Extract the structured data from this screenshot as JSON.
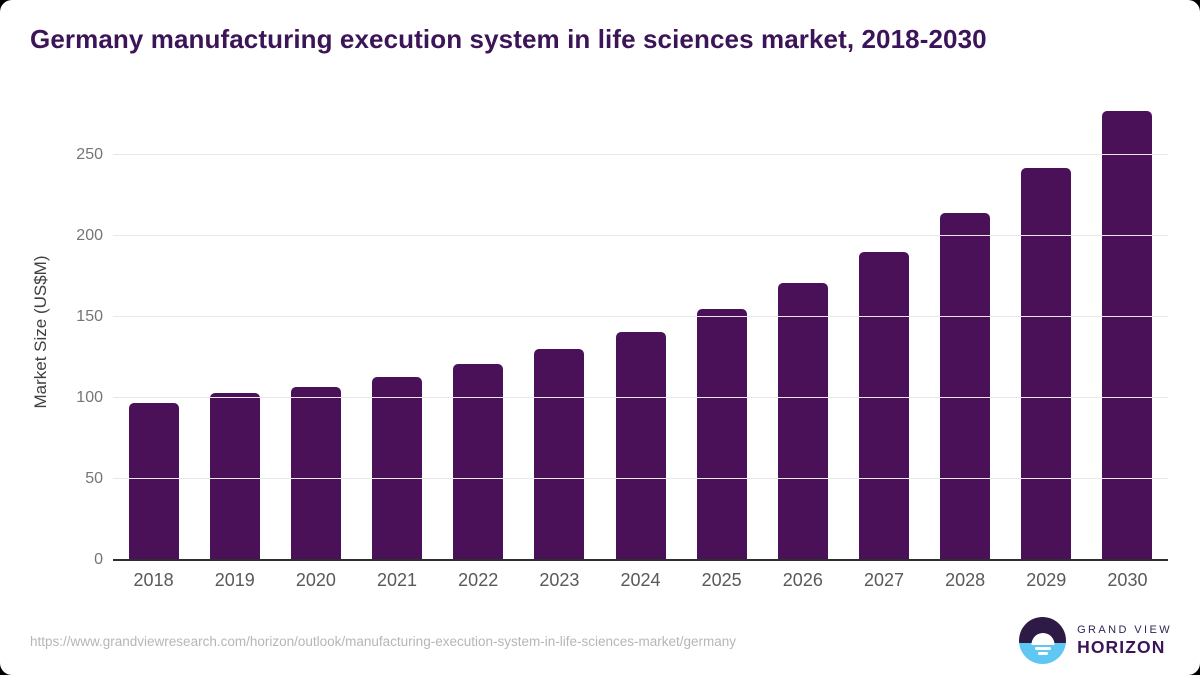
{
  "chart_data": {
    "type": "bar",
    "title": "Germany manufacturing execution system in life sciences market, 2018-2030",
    "categories": [
      "2018",
      "2019",
      "2020",
      "2021",
      "2022",
      "2023",
      "2024",
      "2025",
      "2026",
      "2027",
      "2028",
      "2029",
      "2030"
    ],
    "values": [
      97,
      103,
      107,
      113,
      121,
      130,
      141,
      155,
      171,
      190,
      214,
      242,
      277
    ],
    "xlabel": "",
    "ylabel": "Market Size (US$M)",
    "ylim": [
      0,
      284
    ],
    "yticks": [
      0,
      50,
      100,
      150,
      200,
      250
    ],
    "grid": true,
    "legend": "none",
    "bar_color": "#4a1158"
  },
  "colors": {
    "title_text": "#3c1458",
    "bar": "#4a1158",
    "logo_dark": "#2d1a45",
    "logo_blue": "#5ec7f2"
  },
  "footer": {
    "source_url": "https://www.grandviewresearch.com/horizon/outlook/manufacturing-execution-system-in-life-sciences-market/germany",
    "logo": {
      "line1": "GRAND VIEW",
      "line2": "HORIZON"
    }
  }
}
